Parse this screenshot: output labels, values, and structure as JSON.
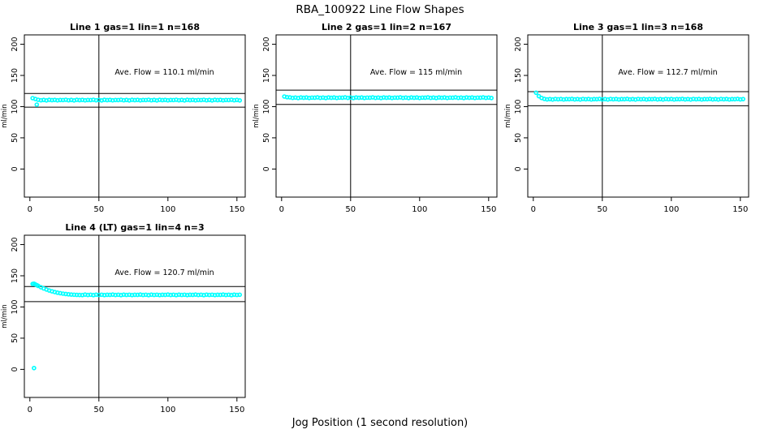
{
  "figure": {
    "title": "RBA_100922  Line Flow Shapes",
    "xlabel": "Jog Position (1 second resolution)"
  },
  "chart_data": [
    {
      "type": "scatter",
      "title": "Line 1 gas=1 lin=1 n=168",
      "annotation": "Ave. Flow =  110.1  ml/min",
      "ave_flow_ml_min": 110.1,
      "n": 168,
      "ylabel": "ml/min",
      "x_ticks": [
        0,
        50,
        100,
        150
      ],
      "y_ticks": [
        0,
        50,
        100,
        150,
        200
      ],
      "xlim": [
        -4,
        156
      ],
      "ylim": [
        -45,
        215
      ],
      "vline_x": 50,
      "ref_lines": [
        121.1,
        99.1
      ],
      "point_color": "#00FFFF",
      "points": [
        [
          2,
          113.6
        ],
        [
          4,
          112.2
        ],
        [
          5,
          103.2
        ],
        [
          6,
          111.0
        ],
        [
          8,
          110.2
        ],
        [
          10,
          110.7
        ],
        [
          12,
          110.0
        ],
        [
          14,
          110.9
        ],
        [
          16,
          110.4
        ],
        [
          18,
          110.8
        ],
        [
          20,
          110.1
        ],
        [
          22,
          110.6
        ],
        [
          24,
          110.5
        ],
        [
          26,
          111.0
        ],
        [
          28,
          110.2
        ],
        [
          30,
          110.7
        ],
        [
          32,
          110.0
        ],
        [
          34,
          110.9
        ],
        [
          36,
          110.4
        ],
        [
          38,
          110.8
        ],
        [
          40,
          110.1
        ],
        [
          42,
          110.6
        ],
        [
          44,
          110.5
        ],
        [
          46,
          111.0
        ],
        [
          48,
          110.2
        ],
        [
          50,
          110.7
        ],
        [
          52,
          110.0
        ],
        [
          54,
          110.9
        ],
        [
          56,
          110.4
        ],
        [
          58,
          110.8
        ],
        [
          60,
          110.1
        ],
        [
          62,
          110.6
        ],
        [
          64,
          110.5
        ],
        [
          66,
          111.0
        ],
        [
          68,
          110.2
        ],
        [
          70,
          110.7
        ],
        [
          72,
          110.0
        ],
        [
          74,
          110.9
        ],
        [
          76,
          110.4
        ],
        [
          78,
          110.8
        ],
        [
          80,
          110.1
        ],
        [
          82,
          110.6
        ],
        [
          84,
          110.5
        ],
        [
          86,
          111.0
        ],
        [
          88,
          110.2
        ],
        [
          90,
          110.7
        ],
        [
          92,
          110.0
        ],
        [
          94,
          110.9
        ],
        [
          96,
          110.4
        ],
        [
          98,
          110.8
        ],
        [
          100,
          110.1
        ],
        [
          102,
          110.6
        ],
        [
          104,
          110.5
        ],
        [
          106,
          111.0
        ],
        [
          108,
          110.2
        ],
        [
          110,
          110.7
        ],
        [
          112,
          110.0
        ],
        [
          114,
          110.9
        ],
        [
          116,
          110.4
        ],
        [
          118,
          110.8
        ],
        [
          120,
          110.1
        ],
        [
          122,
          110.6
        ],
        [
          124,
          110.5
        ],
        [
          126,
          111.0
        ],
        [
          128,
          110.2
        ],
        [
          130,
          110.7
        ],
        [
          132,
          110.0
        ],
        [
          134,
          110.9
        ],
        [
          136,
          110.4
        ],
        [
          138,
          110.8
        ],
        [
          140,
          110.1
        ],
        [
          142,
          110.6
        ],
        [
          144,
          110.5
        ],
        [
          146,
          111.0
        ],
        [
          148,
          110.2
        ],
        [
          150,
          110.7
        ],
        [
          152,
          110.0
        ]
      ]
    },
    {
      "type": "scatter",
      "title": "Line 2 gas=1 lin=2 n=167",
      "annotation": "Ave. Flow =  115  ml/min",
      "ave_flow_ml_min": 115,
      "n": 167,
      "ylabel": "ml/min",
      "x_ticks": [
        0,
        50,
        100,
        150
      ],
      "y_ticks": [
        0,
        50,
        100,
        150,
        200
      ],
      "xlim": [
        -4,
        156
      ],
      "ylim": [
        -45,
        215
      ],
      "vline_x": 50,
      "ref_lines": [
        126.5,
        103.5
      ],
      "point_color": "#00FFFF",
      "points": [
        [
          2,
          116.2
        ],
        [
          4,
          115.1
        ],
        [
          6,
          114.8
        ],
        [
          8,
          114.0
        ],
        [
          10,
          114.5
        ],
        [
          12,
          113.8
        ],
        [
          14,
          114.7
        ],
        [
          16,
          114.2
        ],
        [
          18,
          114.6
        ],
        [
          20,
          113.9
        ],
        [
          22,
          114.4
        ],
        [
          24,
          114.3
        ],
        [
          26,
          114.8
        ],
        [
          28,
          114.0
        ],
        [
          30,
          114.5
        ],
        [
          32,
          113.8
        ],
        [
          34,
          114.7
        ],
        [
          36,
          114.2
        ],
        [
          38,
          114.6
        ],
        [
          40,
          113.9
        ],
        [
          42,
          114.4
        ],
        [
          44,
          114.3
        ],
        [
          46,
          114.8
        ],
        [
          48,
          114.0
        ],
        [
          50,
          114.5
        ],
        [
          52,
          113.8
        ],
        [
          54,
          114.7
        ],
        [
          56,
          114.2
        ],
        [
          58,
          114.6
        ],
        [
          60,
          113.9
        ],
        [
          62,
          114.4
        ],
        [
          64,
          114.3
        ],
        [
          66,
          114.8
        ],
        [
          68,
          114.0
        ],
        [
          70,
          114.5
        ],
        [
          72,
          113.8
        ],
        [
          74,
          114.7
        ],
        [
          76,
          114.2
        ],
        [
          78,
          114.6
        ],
        [
          80,
          113.9
        ],
        [
          82,
          114.4
        ],
        [
          84,
          114.3
        ],
        [
          86,
          114.8
        ],
        [
          88,
          114.0
        ],
        [
          90,
          114.5
        ],
        [
          92,
          113.8
        ],
        [
          94,
          114.7
        ],
        [
          96,
          114.2
        ],
        [
          98,
          114.6
        ],
        [
          100,
          113.9
        ],
        [
          102,
          114.4
        ],
        [
          104,
          114.3
        ],
        [
          106,
          114.8
        ],
        [
          108,
          114.0
        ],
        [
          110,
          114.5
        ],
        [
          112,
          113.8
        ],
        [
          114,
          114.7
        ],
        [
          116,
          114.2
        ],
        [
          118,
          114.6
        ],
        [
          120,
          113.9
        ],
        [
          122,
          114.4
        ],
        [
          124,
          114.3
        ],
        [
          126,
          114.8
        ],
        [
          128,
          114.0
        ],
        [
          130,
          114.5
        ],
        [
          132,
          113.8
        ],
        [
          134,
          114.7
        ],
        [
          136,
          114.2
        ],
        [
          138,
          114.6
        ],
        [
          140,
          113.9
        ],
        [
          142,
          114.4
        ],
        [
          144,
          114.3
        ],
        [
          146,
          114.8
        ],
        [
          148,
          114.0
        ],
        [
          150,
          114.5
        ],
        [
          152,
          113.8
        ]
      ]
    },
    {
      "type": "scatter",
      "title": "Line 3 gas=1 lin=3 n=168",
      "annotation": "Ave. Flow =  112.7  ml/min",
      "ave_flow_ml_min": 112.7,
      "n": 168,
      "ylabel": "ml/min",
      "x_ticks": [
        0,
        50,
        100,
        150
      ],
      "y_ticks": [
        0,
        50,
        100,
        150,
        200
      ],
      "xlim": [
        -4,
        156
      ],
      "ylim": [
        -45,
        215
      ],
      "vline_x": 50,
      "ref_lines": [
        124.0,
        101.4
      ],
      "point_color": "#00FFFF",
      "points": [
        [
          2,
          122.3
        ],
        [
          4,
          116.8
        ],
        [
          6,
          113.9
        ],
        [
          8,
          112.4
        ],
        [
          10,
          111.6
        ],
        [
          12,
          112.1
        ],
        [
          14,
          111.4
        ],
        [
          16,
          112.3
        ],
        [
          18,
          111.8
        ],
        [
          20,
          112.2
        ],
        [
          22,
          111.5
        ],
        [
          24,
          112.0
        ],
        [
          26,
          111.9
        ],
        [
          28,
          112.4
        ],
        [
          30,
          111.6
        ],
        [
          32,
          112.1
        ],
        [
          34,
          111.4
        ],
        [
          36,
          112.3
        ],
        [
          38,
          111.8
        ],
        [
          40,
          112.2
        ],
        [
          42,
          111.5
        ],
        [
          44,
          112.0
        ],
        [
          46,
          111.9
        ],
        [
          48,
          112.4
        ],
        [
          50,
          111.6
        ],
        [
          52,
          112.1
        ],
        [
          54,
          111.4
        ],
        [
          56,
          112.3
        ],
        [
          58,
          111.8
        ],
        [
          60,
          112.2
        ],
        [
          62,
          111.5
        ],
        [
          64,
          112.0
        ],
        [
          66,
          111.9
        ],
        [
          68,
          112.4
        ],
        [
          70,
          111.6
        ],
        [
          72,
          112.1
        ],
        [
          74,
          111.4
        ],
        [
          76,
          112.3
        ],
        [
          78,
          111.8
        ],
        [
          80,
          112.2
        ],
        [
          82,
          111.5
        ],
        [
          84,
          112.0
        ],
        [
          86,
          111.9
        ],
        [
          88,
          112.4
        ],
        [
          90,
          111.6
        ],
        [
          92,
          112.1
        ],
        [
          94,
          111.4
        ],
        [
          96,
          112.3
        ],
        [
          98,
          111.8
        ],
        [
          100,
          112.2
        ],
        [
          102,
          111.5
        ],
        [
          104,
          112.0
        ],
        [
          106,
          111.9
        ],
        [
          108,
          112.4
        ],
        [
          110,
          111.6
        ],
        [
          112,
          112.1
        ],
        [
          114,
          111.4
        ],
        [
          116,
          112.3
        ],
        [
          118,
          111.8
        ],
        [
          120,
          112.2
        ],
        [
          122,
          111.5
        ],
        [
          124,
          112.0
        ],
        [
          126,
          111.9
        ],
        [
          128,
          112.4
        ],
        [
          130,
          111.6
        ],
        [
          132,
          112.1
        ],
        [
          134,
          111.4
        ],
        [
          136,
          112.3
        ],
        [
          138,
          111.8
        ],
        [
          140,
          112.2
        ],
        [
          142,
          111.5
        ],
        [
          144,
          112.0
        ],
        [
          146,
          111.9
        ],
        [
          148,
          112.4
        ],
        [
          150,
          111.6
        ],
        [
          152,
          112.1
        ]
      ]
    },
    {
      "type": "scatter",
      "title": "Line 4 (LT) gas=1 lin=4 n=3",
      "annotation": "Ave. Flow =  120.7  ml/min",
      "ave_flow_ml_min": 120.7,
      "n": 3,
      "ylabel": "ml/min",
      "x_ticks": [
        0,
        50,
        100,
        150
      ],
      "y_ticks": [
        0,
        50,
        100,
        150,
        200
      ],
      "xlim": [
        -4,
        156
      ],
      "ylim": [
        -45,
        215
      ],
      "vline_x": 50,
      "ref_lines": [
        132.8,
        108.6
      ],
      "point_color": "#00FFFF",
      "points": [
        [
          3,
          2.1
        ],
        [
          2,
          136.9
        ],
        [
          3,
          137.3
        ],
        [
          4,
          136.1
        ],
        [
          5,
          135.0
        ],
        [
          6,
          133.8
        ],
        [
          8,
          131.6
        ],
        [
          10,
          129.7
        ],
        [
          12,
          128.0
        ],
        [
          14,
          126.4
        ],
        [
          16,
          125.1
        ],
        [
          18,
          123.9
        ],
        [
          20,
          122.9
        ],
        [
          22,
          122.1
        ],
        [
          24,
          121.4
        ],
        [
          26,
          120.8
        ],
        [
          28,
          120.3
        ],
        [
          30,
          119.9
        ],
        [
          32,
          119.6
        ],
        [
          34,
          119.4
        ],
        [
          36,
          119.2
        ],
        [
          38,
          119.1
        ],
        [
          40,
          119.8
        ],
        [
          42,
          119.2
        ],
        [
          44,
          119.6
        ],
        [
          46,
          119.0
        ],
        [
          48,
          119.7
        ],
        [
          50,
          119.3
        ],
        [
          52,
          119.6
        ],
        [
          54,
          119.1
        ],
        [
          56,
          119.5
        ],
        [
          58,
          119.4
        ],
        [
          60,
          119.8
        ],
        [
          62,
          119.2
        ],
        [
          64,
          119.6
        ],
        [
          66,
          119.0
        ],
        [
          68,
          119.7
        ],
        [
          70,
          119.3
        ],
        [
          72,
          119.6
        ],
        [
          74,
          119.1
        ],
        [
          76,
          119.5
        ],
        [
          78,
          119.4
        ],
        [
          80,
          119.8
        ],
        [
          82,
          119.2
        ],
        [
          84,
          119.6
        ],
        [
          86,
          119.0
        ],
        [
          88,
          119.7
        ],
        [
          90,
          119.3
        ],
        [
          92,
          119.6
        ],
        [
          94,
          119.1
        ],
        [
          96,
          119.5
        ],
        [
          98,
          119.4
        ],
        [
          100,
          119.8
        ],
        [
          102,
          119.2
        ],
        [
          104,
          119.6
        ],
        [
          106,
          119.0
        ],
        [
          108,
          119.7
        ],
        [
          110,
          119.3
        ],
        [
          112,
          119.6
        ],
        [
          114,
          119.1
        ],
        [
          116,
          119.5
        ],
        [
          118,
          119.4
        ],
        [
          120,
          119.8
        ],
        [
          122,
          119.2
        ],
        [
          124,
          119.6
        ],
        [
          126,
          119.0
        ],
        [
          128,
          119.7
        ],
        [
          130,
          119.3
        ],
        [
          132,
          119.6
        ],
        [
          134,
          119.1
        ],
        [
          136,
          119.5
        ],
        [
          138,
          119.4
        ],
        [
          140,
          119.8
        ],
        [
          142,
          119.2
        ],
        [
          144,
          119.6
        ],
        [
          146,
          119.0
        ],
        [
          148,
          119.7
        ],
        [
          150,
          119.3
        ],
        [
          152,
          119.6
        ]
      ]
    }
  ]
}
